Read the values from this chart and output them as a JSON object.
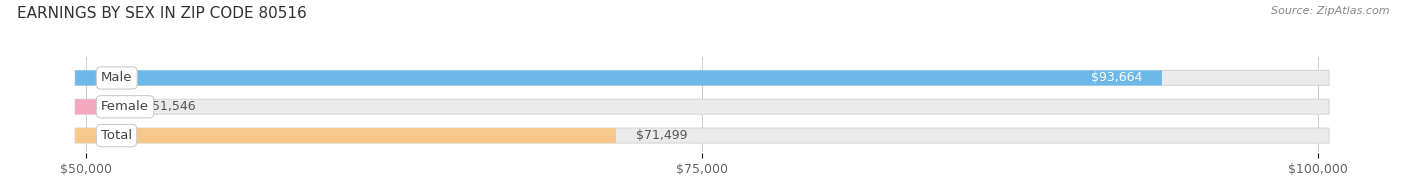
{
  "title": "EARNINGS BY SEX IN ZIP CODE 80516",
  "source": "Source: ZipAtlas.com",
  "categories": [
    "Male",
    "Female",
    "Total"
  ],
  "values": [
    93664,
    51546,
    71499
  ],
  "bar_colors": [
    "#6cb8e8",
    "#f4a8c0",
    "#f7c88a"
  ],
  "track_color": "#ebebeb",
  "track_border_color": "#d8d8d8",
  "label_box_color": "#ffffff",
  "label_text_color": "#444444",
  "value_label_colors_inside": [
    "#ffffff",
    "#555555",
    "#555555"
  ],
  "x_min": 50000,
  "x_max": 100000,
  "x_ticks": [
    50000,
    75000,
    100000
  ],
  "x_tick_labels": [
    "$50,000",
    "$75,000",
    "$100,000"
  ],
  "value_labels": [
    "$93,664",
    "$51,546",
    "$71,499"
  ],
  "bar_height": 0.52,
  "background_color": "#ffffff",
  "title_fontsize": 11,
  "source_fontsize": 8,
  "tick_fontsize": 9,
  "bar_label_fontsize": 9.5,
  "value_label_fontsize": 9
}
